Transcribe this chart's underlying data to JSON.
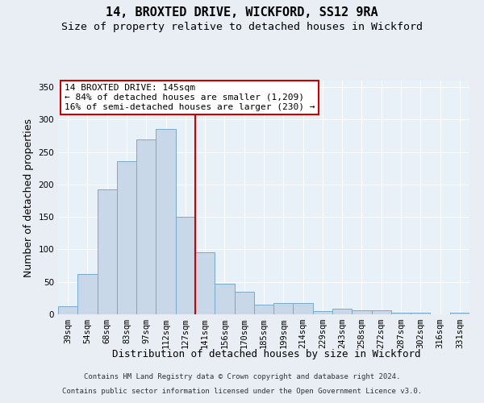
{
  "title": "14, BROXTED DRIVE, WICKFORD, SS12 9RA",
  "subtitle": "Size of property relative to detached houses in Wickford",
  "xlabel": "Distribution of detached houses by size in Wickford",
  "ylabel": "Number of detached properties",
  "categories": [
    "39sqm",
    "54sqm",
    "68sqm",
    "83sqm",
    "97sqm",
    "112sqm",
    "127sqm",
    "141sqm",
    "156sqm",
    "170sqm",
    "185sqm",
    "199sqm",
    "214sqm",
    "229sqm",
    "243sqm",
    "258sqm",
    "272sqm",
    "287sqm",
    "302sqm",
    "316sqm",
    "331sqm"
  ],
  "values": [
    12,
    62,
    192,
    236,
    270,
    285,
    150,
    95,
    47,
    35,
    15,
    18,
    18,
    5,
    9,
    6,
    6,
    2,
    2,
    0,
    2
  ],
  "bar_color": "#c8d8e8",
  "bar_edge_color": "#7aaac8",
  "vline_x": 6.5,
  "vline_color": "#cc0000",
  "annotation_text": "14 BROXTED DRIVE: 145sqm\n← 84% of detached houses are smaller (1,209)\n16% of semi-detached houses are larger (230) →",
  "annotation_box_color": "#ffffff",
  "annotation_box_edge": "#cc0000",
  "ylim": [
    0,
    360
  ],
  "yticks": [
    0,
    50,
    100,
    150,
    200,
    250,
    300,
    350
  ],
  "bg_color": "#e8eef4",
  "plot_bg_color": "#e8f0f8",
  "footer1": "Contains HM Land Registry data © Crown copyright and database right 2024.",
  "footer2": "Contains public sector information licensed under the Open Government Licence v3.0.",
  "title_fontsize": 11,
  "subtitle_fontsize": 9.5,
  "axis_label_fontsize": 9,
  "tick_fontsize": 7.5,
  "annotation_fontsize": 8,
  "footer_fontsize": 6.5
}
